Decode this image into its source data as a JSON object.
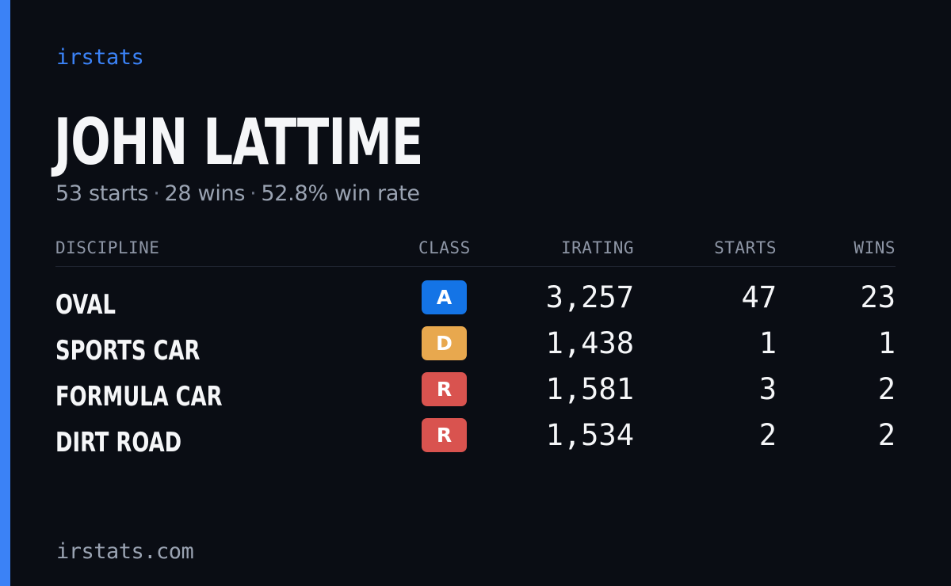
{
  "colors": {
    "accent": "#3b82f6",
    "background": "#0a0d14",
    "class_a": "#1474e6",
    "class_d": "#e8a84e",
    "class_r": "#d9534f"
  },
  "brand": "irstats",
  "driver": {
    "name": "JOHN LATTIME",
    "starts": "53 starts",
    "wins": "28 wins",
    "win_rate": "52.8% win rate",
    "separator": "·"
  },
  "table": {
    "headers": {
      "discipline": "DISCIPLINE",
      "class": "CLASS",
      "irating": "IRATING",
      "starts": "STARTS",
      "wins": "WINS"
    },
    "rows": [
      {
        "discipline": "OVAL",
        "class": "A",
        "class_color": "#1474e6",
        "irating": "3,257",
        "starts": "47",
        "wins": "23"
      },
      {
        "discipline": "SPORTS CAR",
        "class": "D",
        "class_color": "#e8a84e",
        "irating": "1,438",
        "starts": "1",
        "wins": "1"
      },
      {
        "discipline": "FORMULA CAR",
        "class": "R",
        "class_color": "#d9534f",
        "irating": "1,581",
        "starts": "3",
        "wins": "2"
      },
      {
        "discipline": "DIRT ROAD",
        "class": "R",
        "class_color": "#d9534f",
        "irating": "1,534",
        "starts": "2",
        "wins": "2"
      }
    ]
  },
  "footer": "irstats.com"
}
